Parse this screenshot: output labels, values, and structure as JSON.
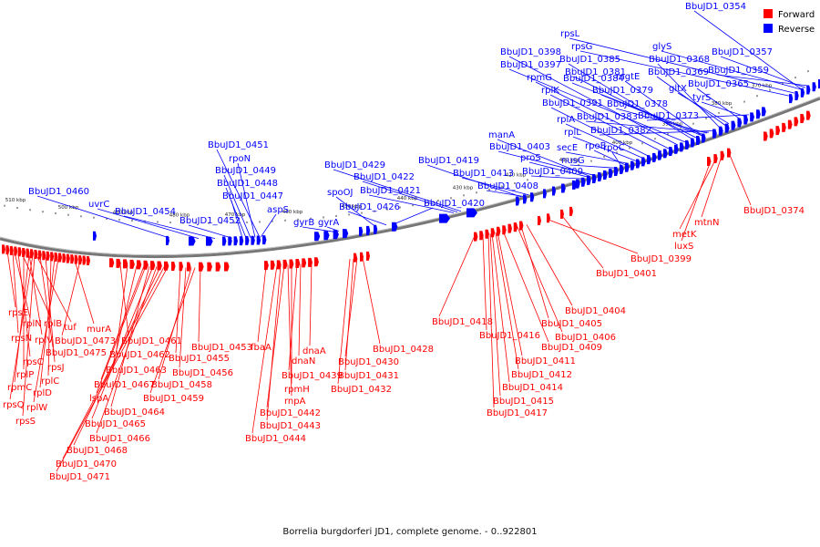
{
  "caption": "Borrelia burgdorferi JD1, complete genome. - 0..922801",
  "legend": [
    {
      "label": "Forward",
      "color": "#ff0000"
    },
    {
      "label": "Reverse",
      "color": "#0000ff"
    }
  ],
  "colors": {
    "forward": "#ff0000",
    "reverse": "#0000ff",
    "backbone": "#777777"
  },
  "ticks": [
    "370 kbp",
    "380 kbp",
    "390 kbp",
    "400 kbp",
    "410 kbp",
    "420 kbp",
    "430 kbp",
    "440 kbp",
    "450 kbp",
    "460 kbp",
    "470 kbp",
    "480 kbp",
    "490 kbp",
    "500 kbp",
    "510 kbp"
  ],
  "forward_labels": [
    "rpsE",
    "rplN",
    "rplB",
    "tuf",
    "rpsN",
    "rplV",
    "BbuJD1_0475",
    "rpsC",
    "rpsJ",
    "rplP",
    "rplC",
    "rpmC",
    "rplD",
    "rpsQ",
    "rplW",
    "rpsS",
    "murA",
    "BbuJD1_0473",
    "BbuJD1_0461",
    "BbuJD1_0462",
    "BbuJD1_0463",
    "BbuJD1_0467",
    "lspA",
    "BbuJD1_0464",
    "BbuJD1_0465",
    "BbuJD1_0466",
    "BbuJD1_0468",
    "BbuJD1_0470",
    "BbuJD1_0471",
    "BbuJD1_0455",
    "BbuJD1_0456",
    "BbuJD1_0458",
    "BbuJD1_0459",
    "BbuJD1_0453",
    "fbaA",
    "dnaA",
    "dnaN",
    "BbuJD1_0439",
    "rpmH",
    "rnpA",
    "BbuJD1_0442",
    "BbuJD1_0443",
    "BbuJD1_0444",
    "BbuJD1_0428",
    "BbuJD1_0430",
    "BbuJD1_0431",
    "BbuJD1_0432",
    "BbuJD1_0418",
    "BbuJD1_0416",
    "BbuJD1_0409",
    "BbuJD1_0411",
    "BbuJD1_0412",
    "BbuJD1_0414",
    "BbuJD1_0415",
    "BbuJD1_0417",
    "BbuJD1_0404",
    "BbuJD1_0405",
    "BbuJD1_0406",
    "BbuJD1_0399",
    "BbuJD1_0401",
    "luxS",
    "metK",
    "mtnN",
    "BbuJD1_0374"
  ],
  "reverse_labels": [
    "BbuJD1_0354",
    "rpsL",
    "rpsG",
    "BbuJD1_0398",
    "BbuJD1_0385",
    "BbuJD1_0397",
    "BbuJD1_0381",
    "glyS",
    "BbuJD1_0357",
    "BbuJD1_0368",
    "BbuJD1_0369",
    "BbuJD1_0359",
    "rpmG",
    "mgtE",
    "BbuJD1_0384",
    "gltX",
    "BbuJD1_0365",
    "rplK",
    "BbuJD1_0379",
    "tyrS",
    "BbuJD1_0391",
    "BbuJD1_0378",
    "BbuJD1_0373",
    "rplA",
    "BbuJD1_0383",
    "rplL",
    "BbuJD1_0382",
    "manA",
    "secE",
    "rpoB",
    "rpoC",
    "BbuJD1_0403",
    "nusG",
    "proS",
    "BbuJD1_0400",
    "BbuJD1_0413",
    "BbuJD1_0408",
    "BbuJD1_0419",
    "BbuJD1_0429",
    "BbuJD1_0422",
    "BbuJD1_0421",
    "spoOJ",
    "BbuJD1_0426",
    "gyrA",
    "gyrB",
    "BbuJD1_0420",
    "BbuJD1_0451",
    "rpoN",
    "BbuJD1_0449",
    "BbuJD1_0448",
    "BbuJD1_0447",
    "aspS",
    "BbuJD1_0452",
    "BbuJD1_0454",
    "uvrC",
    "BbuJD1_0460"
  ]
}
